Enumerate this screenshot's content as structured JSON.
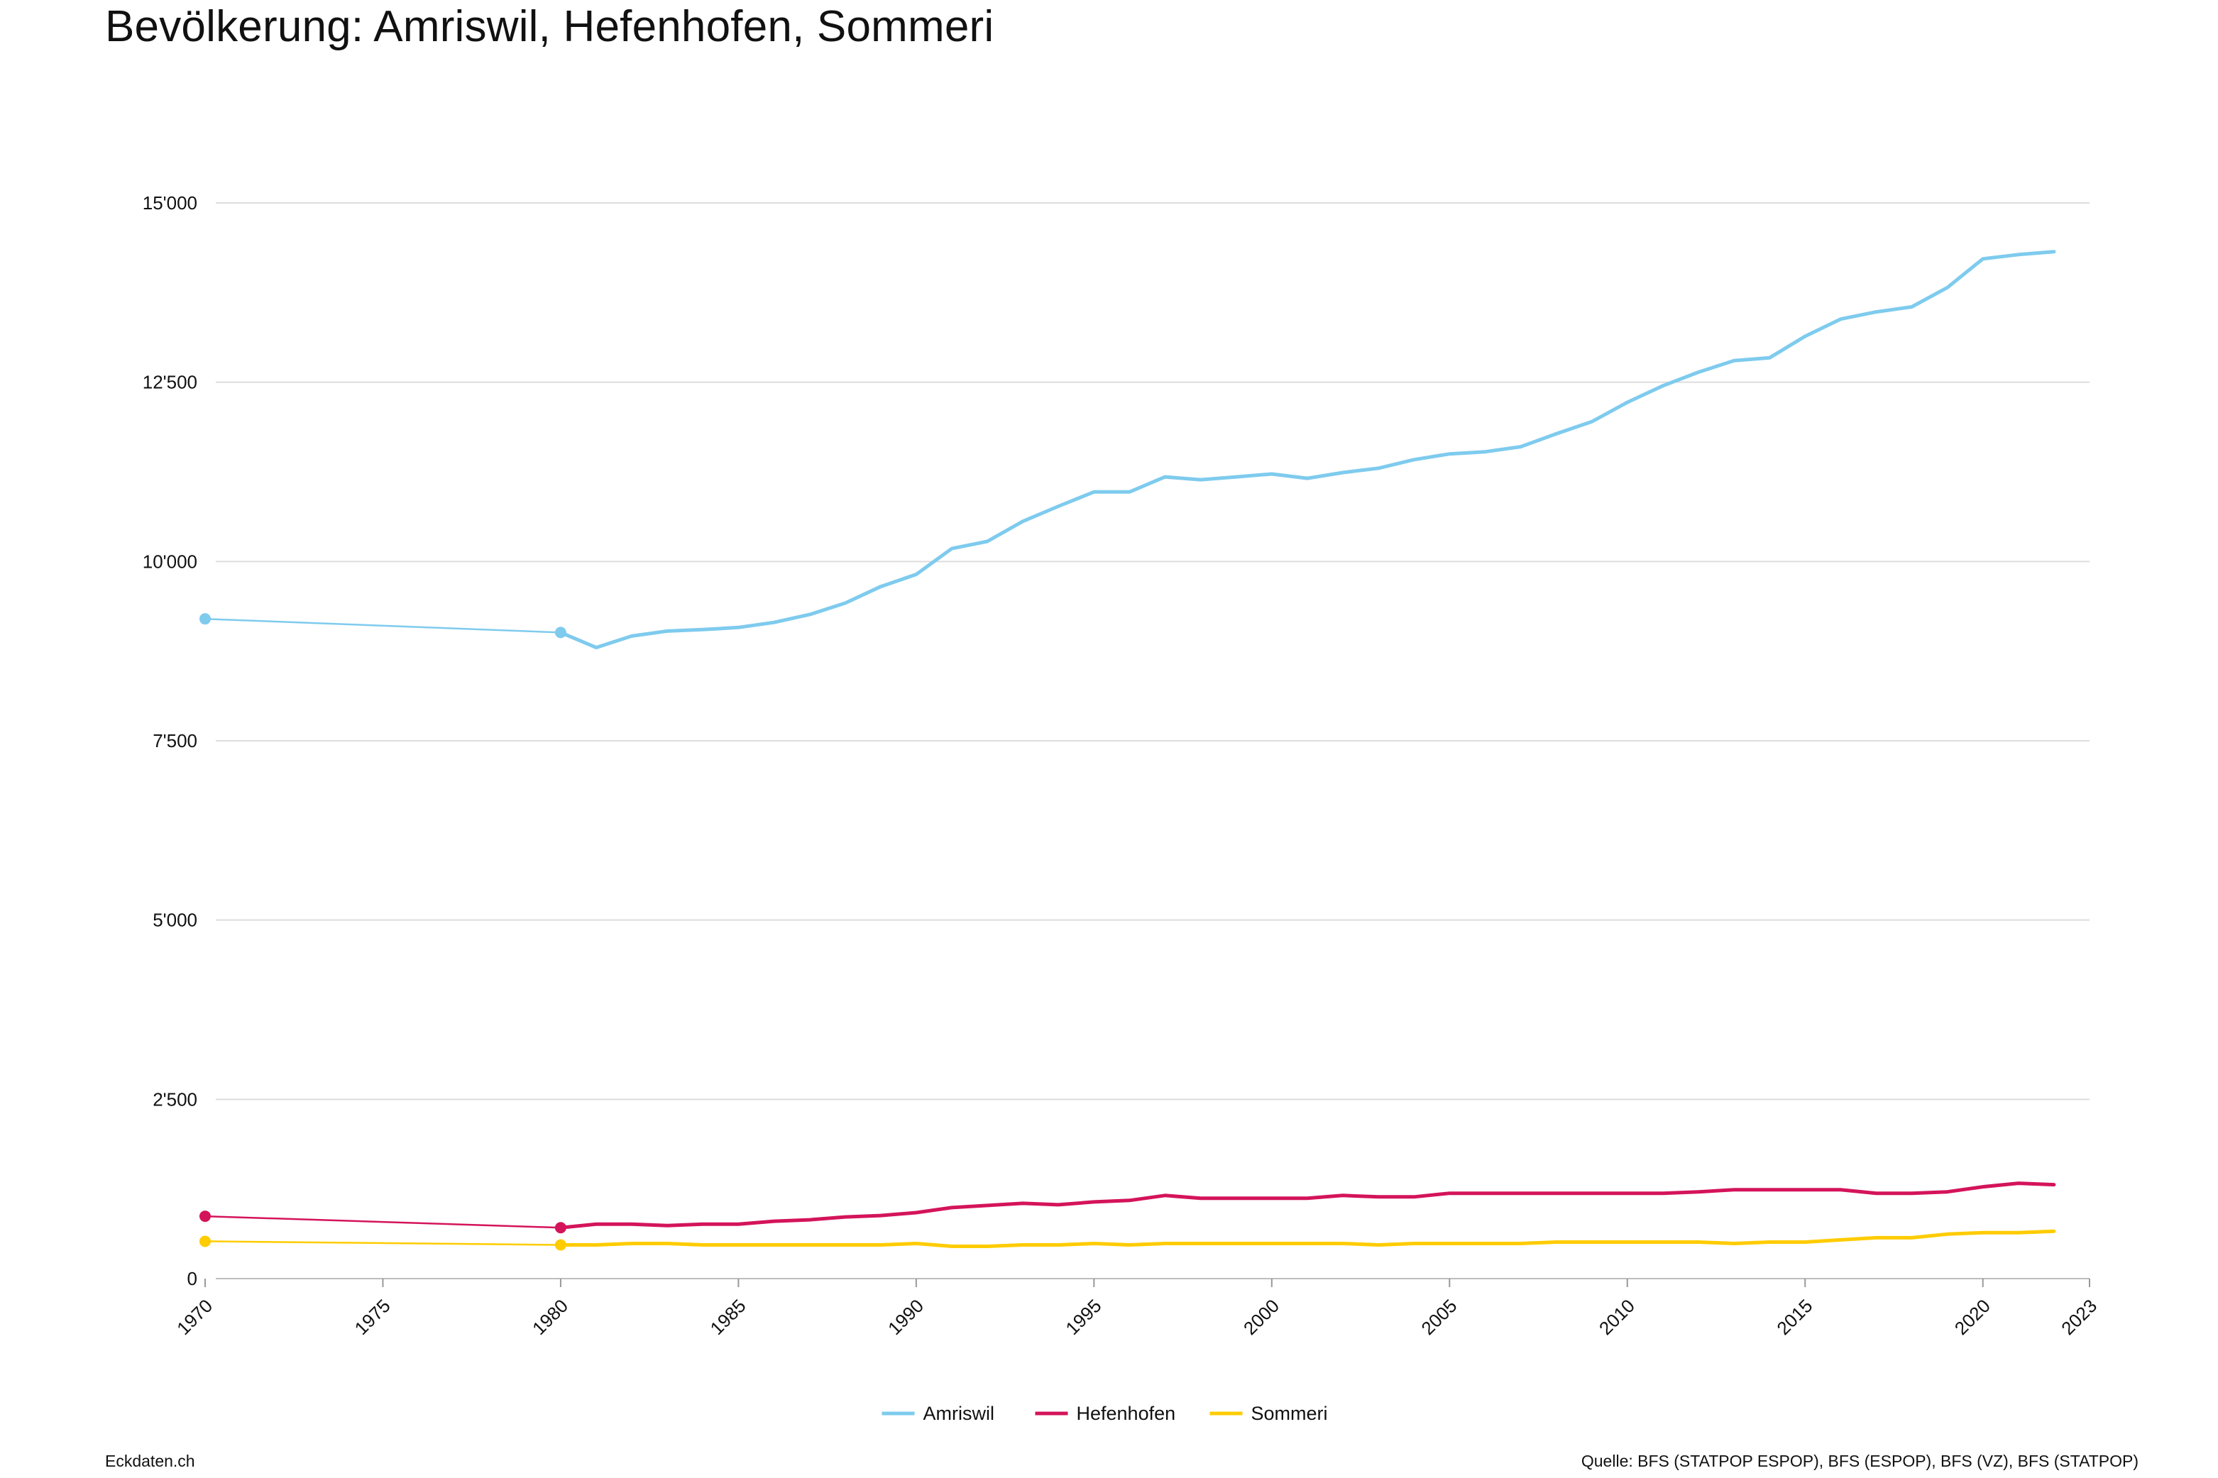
{
  "title": "Bevölkerung: Amriswil, Hefenhofen, Sommeri",
  "footer": {
    "left": "Eckdaten.ch",
    "right": "Quelle: BFS (STATPOP ESPOP), BFS (ESPOP), BFS (VZ), BFS (STATPOP)"
  },
  "chart_data": {
    "type": "line",
    "title": "Bevölkerung: Amriswil, Hefenhofen, Sommeri",
    "xlabel": "",
    "ylabel": "",
    "xlim": [
      1970,
      2023
    ],
    "ylim": [
      0,
      15000
    ],
    "x_ticks": [
      1970,
      1975,
      1980,
      1985,
      1990,
      1995,
      2000,
      2005,
      2010,
      2015,
      2020,
      2023
    ],
    "y_ticks": [
      0,
      2500,
      5000,
      7500,
      10000,
      12500,
      15000
    ],
    "y_tick_labels": [
      "0",
      "2'500",
      "5'000",
      "7'500",
      "10'000",
      "12'500",
      "15'000"
    ],
    "grid": "horizontal",
    "legend": "bottom-center",
    "series": [
      {
        "name": "Amriswil",
        "color": "#7ecbee",
        "census_points": [
          [
            1970,
            9200
          ],
          [
            1980,
            9010
          ]
        ],
        "x": [
          1980,
          1981,
          1982,
          1983,
          1984,
          1985,
          1986,
          1987,
          1988,
          1989,
          1990,
          1991,
          1992,
          1993,
          1994,
          1995,
          1996,
          1997,
          1998,
          1999,
          2000,
          2001,
          2002,
          2003,
          2004,
          2005,
          2006,
          2007,
          2008,
          2009,
          2010,
          2011,
          2012,
          2013,
          2014,
          2015,
          2016,
          2017,
          2018,
          2019,
          2020,
          2021,
          2022
        ],
        "values": [
          9010,
          8800,
          8960,
          9030,
          9050,
          9080,
          9150,
          9260,
          9420,
          9650,
          9820,
          10180,
          10280,
          10560,
          10770,
          10970,
          10970,
          11180,
          11140,
          11180,
          11220,
          11160,
          11240,
          11300,
          11420,
          11500,
          11530,
          11600,
          11780,
          11950,
          12220,
          12450,
          12640,
          12800,
          12840,
          13140,
          13380,
          13480,
          13550,
          13820,
          14220,
          14280,
          14320
        ]
      },
      {
        "name": "Hefenhofen",
        "color": "#d4145a",
        "census_points": [
          [
            1970,
            870
          ],
          [
            1980,
            710
          ]
        ],
        "x": [
          1980,
          1981,
          1982,
          1983,
          1984,
          1985,
          1986,
          1987,
          1988,
          1989,
          1990,
          1991,
          1992,
          1993,
          1994,
          1995,
          1996,
          1997,
          1998,
          1999,
          2000,
          2001,
          2002,
          2003,
          2004,
          2005,
          2006,
          2007,
          2008,
          2009,
          2010,
          2011,
          2012,
          2013,
          2014,
          2015,
          2016,
          2017,
          2018,
          2019,
          2020,
          2021,
          2022
        ],
        "values": [
          710,
          760,
          760,
          740,
          760,
          760,
          800,
          820,
          860,
          880,
          920,
          990,
          1020,
          1050,
          1030,
          1070,
          1090,
          1160,
          1120,
          1120,
          1120,
          1120,
          1160,
          1140,
          1140,
          1190,
          1190,
          1190,
          1190,
          1190,
          1190,
          1190,
          1210,
          1240,
          1240,
          1240,
          1240,
          1190,
          1190,
          1210,
          1280,
          1330,
          1310
        ]
      },
      {
        "name": "Sommeri",
        "color": "#ffcc00",
        "census_points": [
          [
            1970,
            520
          ],
          [
            1980,
            470
          ]
        ],
        "x": [
          1980,
          1981,
          1982,
          1983,
          1984,
          1985,
          1986,
          1987,
          1988,
          1989,
          1990,
          1991,
          1992,
          1993,
          1994,
          1995,
          1996,
          1997,
          1998,
          1999,
          2000,
          2001,
          2002,
          2003,
          2004,
          2005,
          2006,
          2007,
          2008,
          2009,
          2010,
          2011,
          2012,
          2013,
          2014,
          2015,
          2016,
          2017,
          2018,
          2019,
          2020,
          2021,
          2022
        ],
        "values": [
          470,
          470,
          490,
          490,
          470,
          470,
          470,
          470,
          470,
          470,
          490,
          450,
          450,
          470,
          470,
          490,
          470,
          490,
          490,
          490,
          490,
          490,
          490,
          470,
          490,
          490,
          490,
          490,
          510,
          510,
          510,
          510,
          510,
          490,
          510,
          510,
          540,
          570,
          570,
          620,
          640,
          640,
          660
        ]
      }
    ]
  }
}
